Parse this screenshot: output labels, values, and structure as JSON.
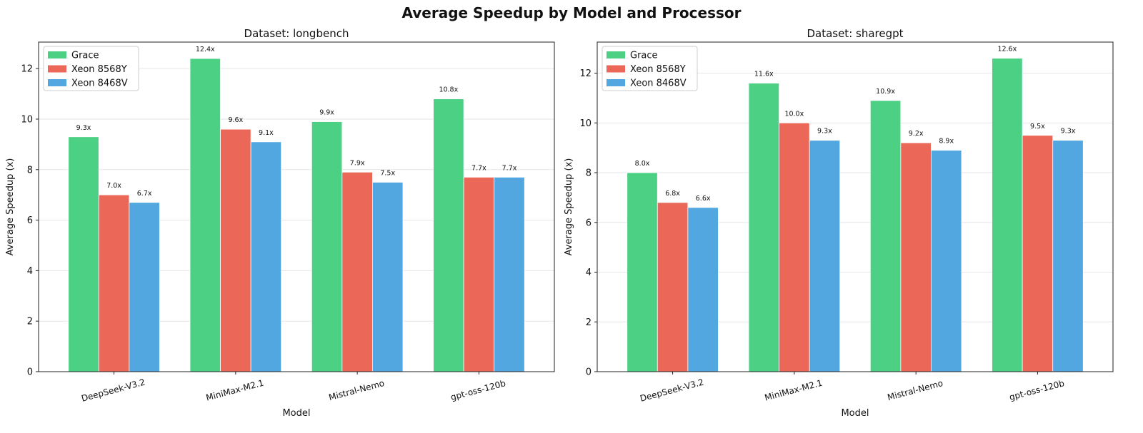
{
  "figure": {
    "title": "Average Speedup by Model and Processor"
  },
  "chart_data": [
    {
      "type": "bar",
      "title": "Dataset: longbench",
      "xlabel": "Model",
      "ylabel": "Average Speedup (x)",
      "categories": [
        "DeepSeek-V3.2",
        "MiniMax-M2.1",
        "Mistral-Nemo",
        "gpt-oss-120b"
      ],
      "series": [
        {
          "name": "Grace",
          "color": "#4cd084",
          "values": [
            9.3,
            12.4,
            9.9,
            10.8
          ],
          "labels": [
            "9.3x",
            "12.4x",
            "9.9x",
            "10.8x"
          ]
        },
        {
          "name": "Xeon 8568Y",
          "color": "#eb6757",
          "values": [
            7.0,
            9.6,
            7.9,
            7.7
          ],
          "labels": [
            "7.0x",
            "9.6x",
            "7.9x",
            "7.7x"
          ]
        },
        {
          "name": "Xeon 8468V",
          "color": "#52a7e0",
          "values": [
            6.7,
            9.1,
            7.5,
            7.7
          ],
          "labels": [
            "6.7x",
            "9.1x",
            "7.5x",
            "7.7x"
          ]
        }
      ],
      "ylim": [
        0,
        13.05
      ],
      "yticks": [
        0,
        2,
        4,
        6,
        8,
        10,
        12
      ],
      "grid": true,
      "legend": "top-left"
    },
    {
      "type": "bar",
      "title": "Dataset: sharegpt",
      "xlabel": "Model",
      "ylabel": "Average Speedup (x)",
      "categories": [
        "DeepSeek-V3.2",
        "MiniMax-M2.1",
        "Mistral-Nemo",
        "gpt-oss-120b"
      ],
      "series": [
        {
          "name": "Grace",
          "color": "#4cd084",
          "values": [
            8.0,
            11.6,
            10.9,
            12.6
          ],
          "labels": [
            "8.0x",
            "11.6x",
            "10.9x",
            "12.6x"
          ]
        },
        {
          "name": "Xeon 8568Y",
          "color": "#eb6757",
          "values": [
            6.8,
            10.0,
            9.2,
            9.5
          ],
          "labels": [
            "6.8x",
            "10.0x",
            "9.2x",
            "9.5x"
          ]
        },
        {
          "name": "Xeon 8468V",
          "color": "#52a7e0",
          "values": [
            6.6,
            9.3,
            8.9,
            9.3
          ],
          "labels": [
            "6.6x",
            "9.3x",
            "8.9x",
            "9.3x"
          ]
        }
      ],
      "ylim": [
        0,
        13.25
      ],
      "yticks": [
        0,
        2,
        4,
        6,
        8,
        10,
        12
      ],
      "grid": true,
      "legend": "top-left"
    }
  ]
}
